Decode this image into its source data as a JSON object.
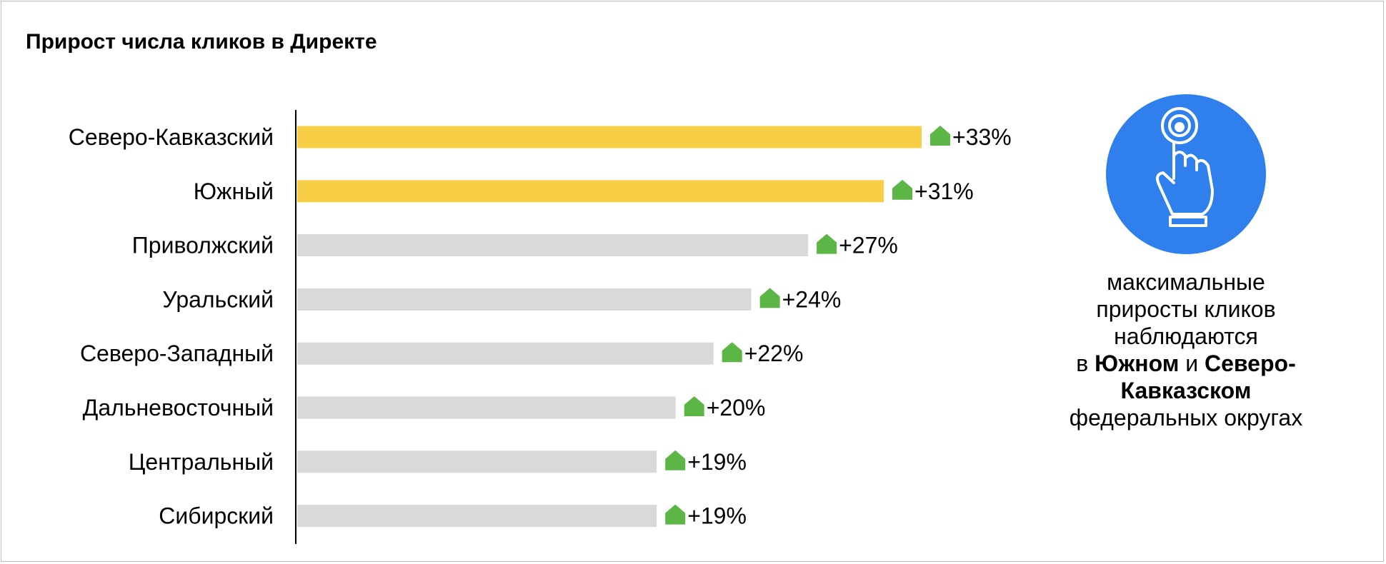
{
  "chart_data": {
    "type": "bar",
    "orientation": "horizontal",
    "title": "Прирост числа кликов в Директе",
    "categories": [
      "Северо-Кавказский",
      "Южный",
      "Приволжский",
      "Уральский",
      "Северо-Западный",
      "Дальневосточный",
      "Центральный",
      "Сибирский"
    ],
    "values": [
      33,
      31,
      27,
      24,
      22,
      20,
      19,
      19
    ],
    "value_labels": [
      "+33%",
      "+31%",
      "+27%",
      "+24%",
      "+22%",
      "+20%",
      "+19%",
      "+19%"
    ],
    "highlighted": [
      true,
      true,
      false,
      false,
      false,
      false,
      false,
      false
    ],
    "xlim": [
      0,
      33
    ],
    "grid": false,
    "legend": "none",
    "colors": {
      "highlight": "#F7CE46",
      "default": "#D9D9D9",
      "arrow": "#5CB645",
      "axis": "#000000"
    }
  },
  "callout": {
    "icon": "tap-hand-icon",
    "icon_bg": "#2F80ED",
    "line1": "максимальные",
    "line2": "приросты кликов",
    "line3": "наблюдаются",
    "line4_pre": "в ",
    "line4_bold1": "Южном",
    "line4_mid": " и ",
    "line4_bold2": "Северо-",
    "line5_bold": "Кавказском",
    "line6": "федеральных округах"
  }
}
